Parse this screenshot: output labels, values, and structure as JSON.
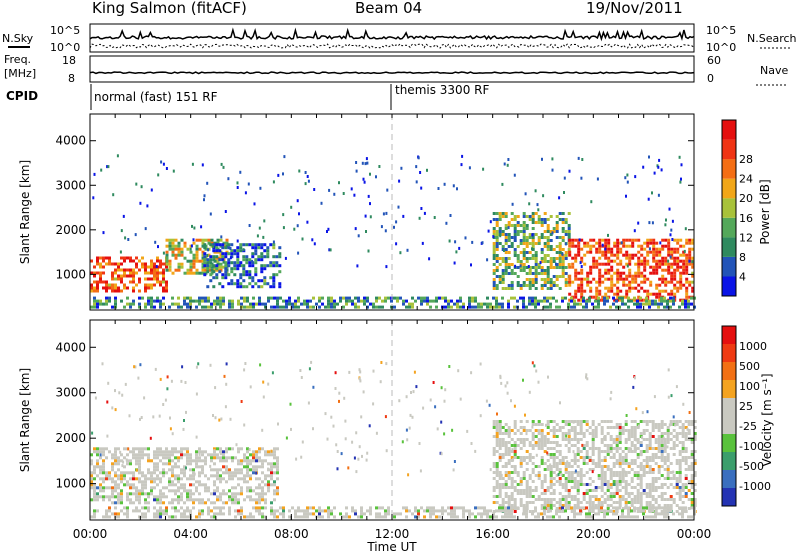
{
  "header": {
    "station": "King Salmon (fitACF)",
    "beam": "Beam 04",
    "date": "19/Nov/2011"
  },
  "noise_panel": {
    "left_label": "N.Sky",
    "right_label": "N.Search",
    "left_ticks": [
      "10^5",
      "10^0"
    ],
    "right_ticks": [
      "10^5",
      "10^0"
    ]
  },
  "freq_panel": {
    "left_label_line1": "Freq.",
    "left_label_line2": "[MHz]",
    "right_label": "Nave",
    "left_ticks": [
      "18",
      "8"
    ],
    "right_ticks": [
      "60",
      "0"
    ]
  },
  "cpid_panel": {
    "label": "CPID",
    "programs": [
      {
        "name": "normal (fast) 151 RF",
        "start_hour": 0,
        "end_hour": 12
      },
      {
        "name": "themis 3300 RF",
        "start_hour": 12,
        "end_hour": 24
      }
    ]
  },
  "x_axis": {
    "label": "Time UT",
    "ticks": [
      "00:00",
      "04:00",
      "08:00",
      "12:00",
      "16:00",
      "20:00",
      "00:00"
    ]
  },
  "chart_data": [
    {
      "type": "heatmap",
      "parameter": "power",
      "ylabel": "Slant Range [km]",
      "ylim": [
        200,
        4600
      ],
      "xlim_hours": [
        0,
        24
      ],
      "yticks": [
        1000,
        2000,
        3000,
        4000
      ],
      "colorbar": {
        "label": "Power [dB]",
        "ticks": [
          "4",
          "8",
          "12",
          "16",
          "20",
          "24",
          "28"
        ],
        "colors": [
          "#0a14e6",
          "#2254b8",
          "#2f8a5f",
          "#54a85a",
          "#a8c23a",
          "#f1a618",
          "#f46e14",
          "#f03414",
          "#e50f0f"
        ]
      },
      "regions": [
        {
          "t0": 0.0,
          "t1": 3.0,
          "r0": 600,
          "r1": 1400,
          "level": 0.8
        },
        {
          "t0": 3.0,
          "t1": 5.5,
          "r0": 1000,
          "r1": 1800,
          "level": 0.5
        },
        {
          "t0": 4.5,
          "t1": 7.5,
          "r0": 700,
          "r1": 1700,
          "level": 0.2
        },
        {
          "t0": 16.0,
          "t1": 19.0,
          "r0": 700,
          "r1": 2400,
          "level": 0.4
        },
        {
          "t0": 19.0,
          "t1": 24.0,
          "r0": 400,
          "r1": 1800,
          "level": 0.8
        },
        {
          "t0": 0.0,
          "t1": 24.0,
          "r0": 250,
          "r1": 500,
          "level": 0.3
        }
      ]
    },
    {
      "type": "heatmap",
      "parameter": "velocity",
      "ylabel": "Slant Range [km]",
      "ylim": [
        200,
        4600
      ],
      "xlim_hours": [
        0,
        24
      ],
      "yticks": [
        1000,
        2000,
        3000,
        4000
      ],
      "colorbar": {
        "label": "Velocity [m s⁻¹]",
        "ticks": [
          "1000",
          "500",
          "100",
          "25",
          "-25",
          "-100",
          "-500",
          "-1000"
        ],
        "colors": [
          "#2433b3",
          "#3a6fbf",
          "#3b9e6c",
          "#59c23c",
          "#c9c9c1",
          "#c9c9c1",
          "#f4a320",
          "#f27014",
          "#ef3a12",
          "#e50f0f"
        ]
      },
      "regions": [
        {
          "t0": 0.0,
          "t1": 7.5,
          "r0": 600,
          "r1": 1800,
          "level": 0.0
        },
        {
          "t0": 16.0,
          "t1": 24.0,
          "r0": 400,
          "r1": 2400,
          "level": 0.0
        },
        {
          "t0": 0.0,
          "t1": 24.0,
          "r0": 250,
          "r1": 500,
          "level": 0.0
        }
      ]
    }
  ]
}
